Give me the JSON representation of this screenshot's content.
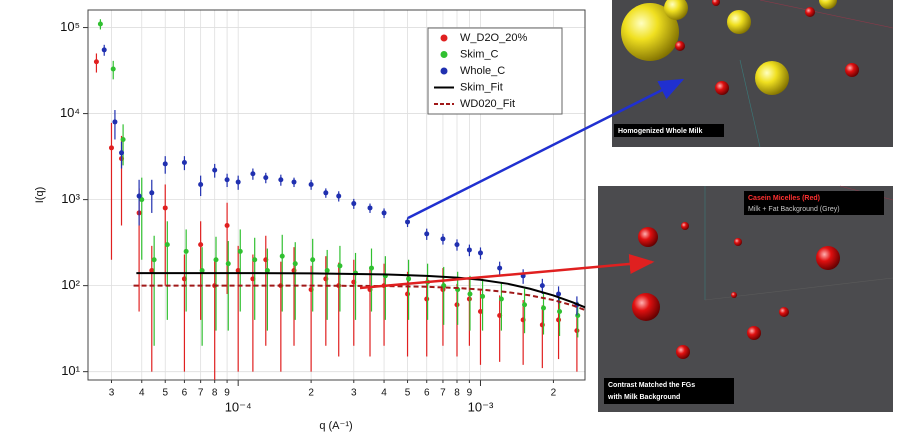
{
  "chart_data": {
    "type": "scatter",
    "xlabel": "q (A⁻¹)",
    "ylabel": "I(q)",
    "xscale": "log",
    "yscale": "log",
    "grid": true,
    "legend": "upper right",
    "xlim": [
      2.4e-05,
      0.0027
    ],
    "ylim": [
      8,
      160000
    ],
    "xticks": [
      {
        "value": 3e-05,
        "label": "3"
      },
      {
        "value": 4e-05,
        "label": "4"
      },
      {
        "value": 5e-05,
        "label": "5"
      },
      {
        "value": 6e-05,
        "label": "6"
      },
      {
        "value": 7e-05,
        "label": "7"
      },
      {
        "value": 8e-05,
        "label": "8"
      },
      {
        "value": 9e-05,
        "label": "9"
      },
      {
        "value": 0.0001,
        "label": "10⁻⁴"
      },
      {
        "value": 0.0002,
        "label": "2"
      },
      {
        "value": 0.0003,
        "label": "3"
      },
      {
        "value": 0.0004,
        "label": "4"
      },
      {
        "value": 0.0005,
        "label": "5"
      },
      {
        "value": 0.0006,
        "label": "6"
      },
      {
        "value": 0.0007,
        "label": "7"
      },
      {
        "value": 0.0008,
        "label": "8"
      },
      {
        "value": 0.0009,
        "label": "9"
      },
      {
        "value": 0.001,
        "label": "10⁻³"
      },
      {
        "value": 0.002,
        "label": "2"
      }
    ],
    "yticks": [
      {
        "value": 10,
        "label": "10¹"
      },
      {
        "value": 100,
        "label": "10²"
      },
      {
        "value": 1000,
        "label": "10³"
      },
      {
        "value": 10000,
        "label": "10⁴"
      },
      {
        "value": 100000,
        "label": "10⁵"
      }
    ],
    "series": [
      {
        "name": "W_D2O_20%",
        "color": "#e02020",
        "mode": "points",
        "x": [
          2.6e-05,
          3e-05,
          3.3e-05,
          3.9e-05,
          4.4e-05,
          5e-05,
          6e-05,
          7e-05,
          8e-05,
          9e-05,
          0.0001,
          0.000115,
          0.00013,
          0.00015,
          0.00017,
          0.0002,
          0.00023,
          0.00026,
          0.0003,
          0.00035,
          0.0004,
          0.0005,
          0.0006,
          0.0007,
          0.0008,
          0.0009,
          0.001,
          0.0012,
          0.0015,
          0.0018,
          0.0021,
          0.0025
        ],
        "values": [
          40000,
          4000,
          3000,
          700,
          150,
          800,
          120,
          300,
          100,
          500,
          150,
          120,
          200,
          100,
          150,
          90,
          120,
          100,
          110,
          90,
          100,
          80,
          70,
          90,
          60,
          70,
          50,
          45,
          40,
          35,
          40,
          30
        ],
        "errors": [
          10000,
          3800,
          2500,
          650,
          140,
          700,
          110,
          260,
          95,
          420,
          140,
          110,
          180,
          90,
          130,
          80,
          100,
          85,
          90,
          75,
          80,
          65,
          55,
          70,
          45,
          50,
          38,
          32,
          28,
          24,
          26,
          20
        ]
      },
      {
        "name": "Skim_C",
        "color": "#30c030",
        "mode": "points",
        "x": [
          2.7e-05,
          3.05e-05,
          3.35e-05,
          4e-05,
          4.5e-05,
          5.1e-05,
          6.1e-05,
          7.1e-05,
          8.1e-05,
          9.1e-05,
          0.000102,
          0.000117,
          0.000132,
          0.000152,
          0.000172,
          0.000203,
          0.000233,
          0.000263,
          0.000305,
          0.000355,
          0.000405,
          0.000505,
          0.000605,
          0.000705,
          0.000805,
          0.000905,
          0.00102,
          0.00122,
          0.00152,
          0.00182,
          0.00212,
          0.00252
        ],
        "values": [
          110000,
          33000,
          5000,
          1000,
          200,
          300,
          250,
          150,
          200,
          180,
          250,
          200,
          150,
          220,
          180,
          200,
          150,
          170,
          140,
          160,
          130,
          120,
          110,
          100,
          90,
          80,
          75,
          70,
          60,
          55,
          50,
          45
        ],
        "errors": [
          15000,
          8000,
          2500,
          800,
          180,
          260,
          200,
          130,
          170,
          150,
          200,
          160,
          120,
          170,
          140,
          150,
          110,
          120,
          100,
          110,
          90,
          80,
          70,
          65,
          55,
          50,
          45,
          40,
          32,
          28,
          24,
          20
        ]
      },
      {
        "name": "Whole_C",
        "color": "#2030b0",
        "mode": "points",
        "x": [
          2.8e-05,
          3.1e-05,
          3.3e-05,
          3.9e-05,
          4.4e-05,
          5e-05,
          6e-05,
          7e-05,
          8e-05,
          9e-05,
          0.0001,
          0.000115,
          0.00013,
          0.00015,
          0.00017,
          0.0002,
          0.00023,
          0.00026,
          0.0003,
          0.00035,
          0.0004,
          0.0005,
          0.0006,
          0.0007,
          0.0008,
          0.0009,
          0.001,
          0.0012,
          0.0015,
          0.0018,
          0.0021,
          0.0025
        ],
        "values": [
          55000,
          8000,
          3500,
          1100,
          1200,
          2600,
          2700,
          1500,
          2200,
          1700,
          1600,
          2000,
          1800,
          1700,
          1600,
          1500,
          1200,
          1100,
          900,
          800,
          700,
          550,
          400,
          350,
          300,
          260,
          240,
          160,
          130,
          100,
          80,
          60
        ],
        "errors": [
          8000,
          3000,
          1200,
          600,
          500,
          600,
          500,
          400,
          400,
          300,
          300,
          300,
          250,
          250,
          200,
          200,
          150,
          150,
          120,
          100,
          90,
          70,
          60,
          50,
          45,
          40,
          38,
          30,
          25,
          20,
          18,
          15
        ]
      },
      {
        "name": "Skim_Fit",
        "color": "#000000",
        "mode": "line",
        "style": "solid",
        "x": [
          3.8e-05,
          0.0001,
          0.0002,
          0.0004,
          0.0006,
          0.0008,
          0.001,
          0.0013,
          0.0016,
          0.002,
          0.0024,
          0.0027
        ],
        "values": [
          140,
          140,
          139,
          135,
          130,
          124,
          117,
          105,
          92,
          77,
          64,
          56
        ]
      },
      {
        "name": "WD020_Fit",
        "color": "#a01818",
        "mode": "line",
        "style": "dashed",
        "x": [
          3.7e-05,
          0.0001,
          0.0002,
          0.0004,
          0.0006,
          0.0008,
          0.001,
          0.0013,
          0.0016,
          0.002,
          0.0024,
          0.0027
        ],
        "values": [
          100,
          100,
          100,
          99,
          97,
          94,
          90,
          84,
          77,
          68,
          59,
          52
        ]
      }
    ]
  },
  "insets": [
    {
      "caption": "Homogenized Whole Milk"
    },
    {
      "legend": [
        "Casein Micelles (Red)",
        "Milk + Fat Background (Grey)"
      ],
      "caption": [
        "Contrast Matched the FGs",
        "with Milk Background"
      ]
    }
  ]
}
